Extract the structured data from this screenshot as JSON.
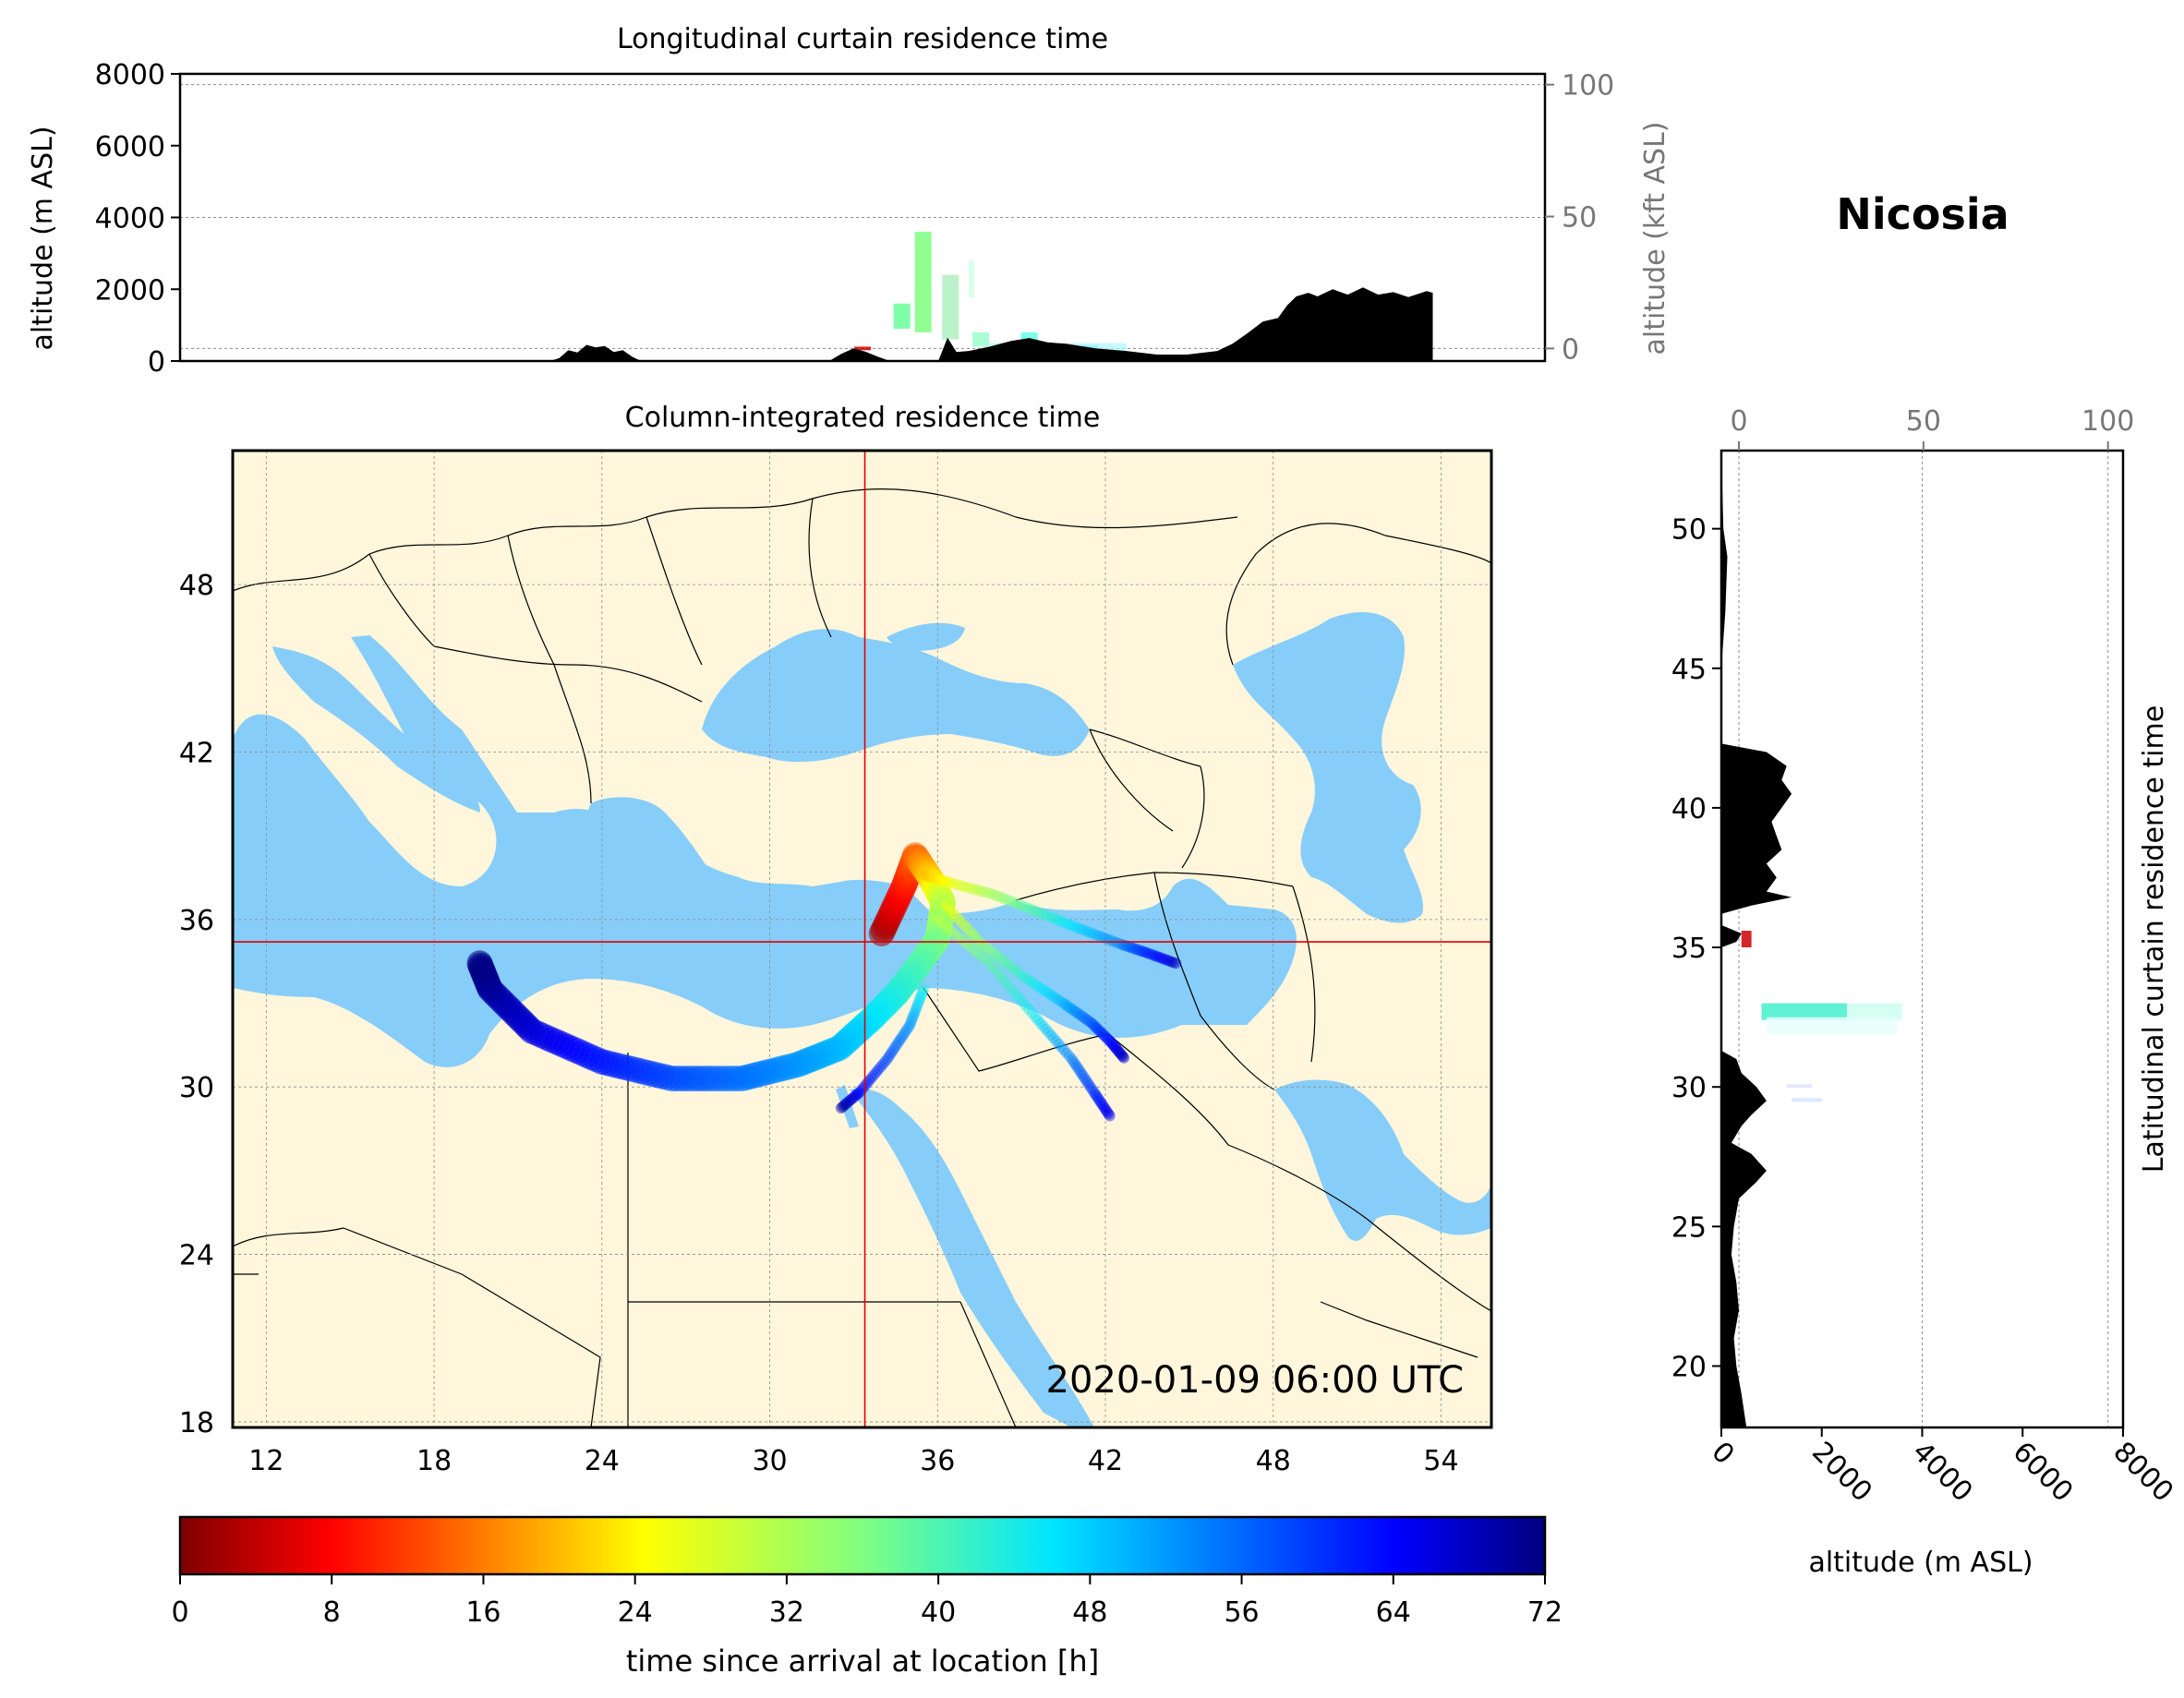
{
  "figure": {
    "location_title": "Nicosia",
    "timestamp": "2020-01-09 06:00 UTC"
  },
  "chart_data": [
    {
      "type": "area",
      "title": "Longitudinal curtain residence time",
      "ylabel": "altitude (m ASL)",
      "ylabel_right": "altitude (kft ASL)",
      "ylim": [
        0,
        8000
      ],
      "yticks": [
        "0",
        "2000",
        "4000",
        "6000",
        "8000"
      ],
      "right_ticks": [
        "0",
        "50",
        "100"
      ],
      "x_range_lon": [
        10.8,
        55.8
      ],
      "terrain": {
        "name": "terrain",
        "x": [
          10.8,
          23,
          23.3,
          23.6,
          23.9,
          24.2,
          24.5,
          24.8,
          25.1,
          25.4,
          25.7,
          26,
          32.2,
          32.6,
          33,
          33.4,
          33.8,
          34.2,
          35.8,
          36.1,
          36.4,
          36.8,
          37.5,
          38.2,
          38.8,
          39.4,
          40,
          41,
          42,
          43,
          44,
          45,
          45.5,
          46,
          46.5,
          47,
          47.3,
          47.6,
          48,
          48.3,
          48.8,
          49.3,
          49.8,
          50.3,
          50.8,
          51.3,
          51.9,
          52.1,
          52.1,
          55.8
        ],
        "y": [
          0,
          0,
          80,
          300,
          240,
          450,
          380,
          420,
          250,
          300,
          120,
          0,
          0,
          200,
          350,
          260,
          120,
          0,
          0,
          650,
          250,
          280,
          400,
          560,
          640,
          520,
          480,
          350,
          280,
          180,
          180,
          280,
          480,
          780,
          1100,
          1200,
          1550,
          1800,
          1900,
          1800,
          2000,
          1850,
          2050,
          1850,
          1920,
          1780,
          1950,
          1900,
          0,
          0
        ]
      },
      "residence_patches": [
        {
          "lon": 35.3,
          "alt_min": 800,
          "alt_max": 3600,
          "color": "#7fff7f"
        },
        {
          "lon": 34.6,
          "alt_min": 900,
          "alt_max": 1600,
          "color": "#66ff99"
        },
        {
          "lon": 36.2,
          "alt_min": 600,
          "alt_max": 2400,
          "color": "#b0f0c0"
        },
        {
          "lon": 37.2,
          "alt_min": 400,
          "alt_max": 800,
          "color": "#99ffcc"
        },
        {
          "lon": 38.8,
          "alt_min": 500,
          "alt_max": 800,
          "color": "#66ffe6"
        },
        {
          "lon": 40.8,
          "alt_min": 300,
          "alt_max": 450,
          "color": "#66e0ff"
        },
        {
          "lon": 33.3,
          "alt_min": 300,
          "alt_max": 400,
          "color": "#cc0000"
        }
      ]
    },
    {
      "type": "scatter",
      "title": "Column-integrated residence time",
      "xticks": [
        "12",
        "18",
        "24",
        "30",
        "36",
        "42",
        "48",
        "54"
      ],
      "yticks": [
        "18",
        "24",
        "30",
        "36",
        "42",
        "48"
      ],
      "xlim": [
        10.8,
        55.8
      ],
      "ylim": [
        17.8,
        52.8
      ],
      "receptor": {
        "lon": 33.4,
        "lat": 35.2
      },
      "trajectories": [
        {
          "name": "main",
          "lon": [
            34.0,
            34.8,
            35.2,
            35.8,
            36.2,
            36.0,
            35.2,
            34.5,
            33.6,
            32.5,
            31.0,
            29.0,
            26.5,
            24.0,
            21.5,
            20.0,
            19.6
          ],
          "lat": [
            35.5,
            37.2,
            38.3,
            37.4,
            36.6,
            35.3,
            34.2,
            33.3,
            32.4,
            31.4,
            30.8,
            30.3,
            30.3,
            30.9,
            32.0,
            33.5,
            34.5
          ],
          "hours": [
            2,
            9,
            14,
            22,
            30,
            36,
            40,
            43,
            46,
            49,
            52,
            55,
            58,
            62,
            66,
            70,
            72
          ]
        },
        {
          "name": "east",
          "lon": [
            35.5,
            36.5,
            38.0,
            39.5,
            41.0,
            42.6,
            43.5,
            44.6
          ],
          "lat": [
            37.6,
            37.3,
            36.9,
            36.3,
            35.7,
            35.1,
            34.8,
            34.4
          ],
          "hours": [
            20,
            26,
            33,
            40,
            47,
            54,
            61,
            68
          ]
        },
        {
          "name": "southeast",
          "lon": [
            36.3,
            37.5,
            39.0,
            40.5,
            41.5,
            42.2,
            42.7
          ],
          "lat": [
            36.5,
            35.2,
            34.0,
            33.0,
            32.3,
            31.6,
            31.0
          ],
          "hours": [
            26,
            34,
            42,
            50,
            57,
            63,
            68
          ]
        },
        {
          "name": "south",
          "lon": [
            36.0,
            37.8,
            39.5,
            40.8,
            41.6,
            42.2
          ],
          "lat": [
            36.0,
            34.5,
            32.5,
            31.0,
            29.8,
            28.9
          ],
          "hours": [
            30,
            38,
            46,
            54,
            60,
            66
          ]
        },
        {
          "name": "sinai",
          "lon": [
            35.5,
            35.0,
            34.2,
            33.2,
            32.5
          ],
          "lat": [
            33.5,
            32.2,
            31.0,
            29.8,
            29.2
          ],
          "hours": [
            44,
            52,
            58,
            64,
            70
          ]
        }
      ]
    },
    {
      "type": "area",
      "title": "Latitudinal curtain residence time",
      "xlabel": "altitude (m ASL)",
      "xlim": [
        0,
        8000
      ],
      "xticks": [
        "0",
        "2000",
        "4000",
        "6000",
        "8000"
      ],
      "top_ticks": [
        "0",
        "50",
        "100"
      ],
      "yticks": [
        "20",
        "25",
        "30",
        "35",
        "40",
        "45",
        "50"
      ],
      "ylim": [
        17.8,
        52.8
      ],
      "terrain": {
        "name": "terrain",
        "lat": [
          17.8,
          19,
          20,
          21,
          22,
          23,
          24,
          25,
          26,
          26.6,
          27,
          27.6,
          28,
          28.6,
          29,
          29.5,
          30,
          30.5,
          31,
          31.3,
          35.0,
          35.2,
          35.5,
          35.8,
          36.2,
          36.5,
          36.8,
          37.0,
          37.5,
          38,
          38.5,
          39,
          39.5,
          40,
          40.5,
          41,
          41.5,
          42,
          42.3,
          45,
          47,
          49,
          50,
          52.8
        ],
        "alt": [
          500,
          400,
          300,
          250,
          350,
          300,
          200,
          250,
          350,
          700,
          900,
          600,
          200,
          400,
          600,
          900,
          700,
          400,
          300,
          0,
          0,
          300,
          400,
          0,
          0,
          600,
          1400,
          900,
          1100,
          900,
          1200,
          1100,
          1000,
          1200,
          1400,
          1200,
          1300,
          900,
          0,
          0,
          80,
          120,
          40,
          0
        ]
      },
      "residence_patches": [
        {
          "lat": 32.7,
          "alt_min": 800,
          "alt_max": 2500,
          "color": "#44eecc"
        },
        {
          "lat": 32.7,
          "alt_min": 2500,
          "alt_max": 3600,
          "color": "#ccfff0"
        },
        {
          "lat": 32.2,
          "alt_min": 900,
          "alt_max": 3500,
          "color": "#e6fffa"
        },
        {
          "lat": 35.3,
          "alt_min": 400,
          "alt_max": 600,
          "color": "#cc0000"
        }
      ]
    }
  ],
  "colorbar": {
    "label": "time since arrival at location [h]",
    "ticks": [
      "0",
      "8",
      "16",
      "24",
      "32",
      "40",
      "48",
      "56",
      "64",
      "72"
    ],
    "range": [
      0,
      72
    ],
    "colormap": "jet_r"
  },
  "colors": {
    "land": "#fff6dc",
    "sea": "#87cdf9",
    "crosshair": "#e00000",
    "terrain": "#000000",
    "grid": "#8c8c8c"
  }
}
